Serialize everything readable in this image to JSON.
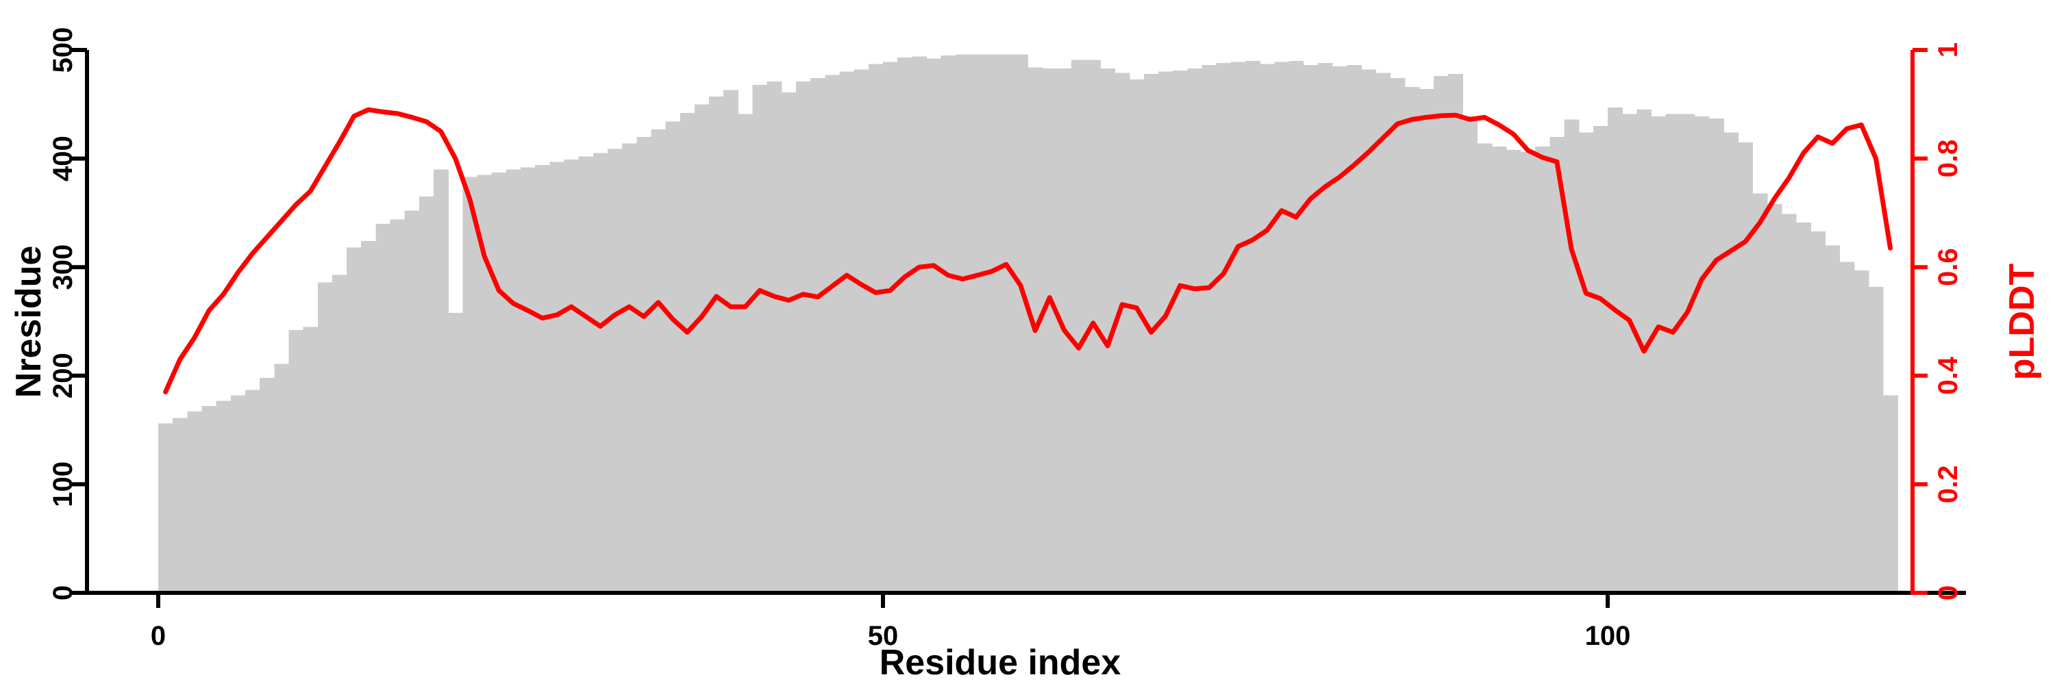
{
  "chart_data": {
    "type": "bar",
    "combo": "bar+line overlay, dual y-axis",
    "title": "",
    "xlabel": "Residue index",
    "ylabel_left": "Nresidue",
    "ylabel_right": "pLDDT",
    "xlim": [
      0,
      121
    ],
    "ylim_left": [
      0,
      500
    ],
    "ylim_right": [
      0,
      1
    ],
    "grid": false,
    "legend_position": "none",
    "x_ticks": {
      "values": [
        0,
        50,
        100
      ],
      "labels": [
        "0",
        "50",
        "100"
      ]
    },
    "y_ticks_left": {
      "values": [
        0,
        100,
        200,
        300,
        400,
        500
      ],
      "labels": [
        "0",
        "100",
        "200",
        "300",
        "400",
        "500"
      ]
    },
    "y_ticks_right": {
      "values": [
        0,
        0.2,
        0.4,
        0.6,
        0.8,
        1
      ],
      "labels": [
        "0",
        "0.2",
        "0.4",
        "0.6",
        "0.8",
        "1"
      ]
    },
    "x": [
      0,
      1,
      2,
      3,
      4,
      5,
      6,
      7,
      8,
      9,
      10,
      11,
      12,
      13,
      14,
      15,
      16,
      17,
      18,
      19,
      20,
      21,
      22,
      23,
      24,
      25,
      26,
      27,
      28,
      29,
      30,
      31,
      32,
      33,
      34,
      35,
      36,
      37,
      38,
      39,
      40,
      41,
      42,
      43,
      44,
      45,
      46,
      47,
      48,
      49,
      50,
      51,
      52,
      53,
      54,
      55,
      56,
      57,
      58,
      59,
      60,
      61,
      62,
      63,
      64,
      65,
      66,
      67,
      68,
      69,
      70,
      71,
      72,
      73,
      74,
      75,
      76,
      77,
      78,
      79,
      80,
      81,
      82,
      83,
      84,
      85,
      86,
      87,
      88,
      89,
      90,
      91,
      92,
      93,
      94,
      95,
      96,
      97,
      98,
      99,
      100,
      101,
      102,
      103,
      104,
      105,
      106,
      107,
      108,
      109,
      110,
      111,
      112,
      113,
      114,
      115,
      116,
      117,
      118,
      119
    ],
    "series": [
      {
        "name": "Nresidue",
        "type": "bar",
        "yaxis": "left",
        "color": "#cccccc",
        "values": [
          156,
          161,
          167,
          172,
          177,
          182,
          187,
          198,
          211,
          242,
          245,
          286,
          293,
          318,
          324,
          340,
          344,
          352,
          365,
          390,
          258,
          383,
          385,
          387,
          390,
          392,
          394,
          397,
          399,
          402,
          405,
          409,
          414,
          420,
          427,
          434,
          442,
          450,
          457,
          463,
          441,
          468,
          471,
          461,
          471,
          474,
          477,
          480,
          482,
          487,
          489,
          493,
          494,
          492,
          495,
          496,
          496,
          496,
          496,
          496,
          484,
          483,
          483,
          491,
          491,
          483,
          479,
          473,
          478,
          480,
          481,
          483,
          486,
          488,
          489,
          490,
          487,
          489,
          490,
          486,
          488,
          485,
          486,
          482,
          479,
          474,
          466,
          464,
          476,
          478,
          439,
          414,
          411,
          408,
          406,
          411,
          420,
          436,
          424,
          430,
          447,
          441,
          445,
          439,
          441,
          441,
          439,
          437,
          424,
          415,
          368,
          358,
          349,
          341,
          333,
          320,
          305,
          297,
          282,
          182
        ]
      },
      {
        "name": "pLDDT",
        "type": "line",
        "yaxis": "right",
        "color": "#ff0000",
        "values": [
          0.37,
          0.43,
          0.47,
          0.52,
          0.55,
          0.59,
          0.625,
          0.655,
          0.685,
          0.715,
          0.74,
          0.785,
          0.83,
          0.878,
          0.89,
          0.886,
          0.883,
          0.876,
          0.868,
          0.85,
          0.8,
          0.725,
          0.62,
          0.557,
          0.533,
          0.52,
          0.506,
          0.512,
          0.527,
          0.509,
          0.491,
          0.512,
          0.527,
          0.509,
          0.535,
          0.504,
          0.48,
          0.509,
          0.546,
          0.527,
          0.527,
          0.557,
          0.546,
          0.539,
          0.55,
          0.545,
          0.565,
          0.585,
          0.568,
          0.553,
          0.557,
          0.582,
          0.6,
          0.603,
          0.585,
          0.578,
          0.585,
          0.592,
          0.605,
          0.566,
          0.483,
          0.544,
          0.484,
          0.451,
          0.497,
          0.455,
          0.531,
          0.525,
          0.48,
          0.51,
          0.566,
          0.56,
          0.562,
          0.588,
          0.638,
          0.65,
          0.668,
          0.704,
          0.692,
          0.726,
          0.748,
          0.766,
          0.788,
          0.812,
          0.838,
          0.864,
          0.872,
          0.876,
          0.879,
          0.88,
          0.872,
          0.876,
          0.862,
          0.845,
          0.815,
          0.802,
          0.794,
          0.633,
          0.552,
          0.542,
          0.521,
          0.502,
          0.445,
          0.49,
          0.48,
          0.517,
          0.578,
          0.613,
          0.63,
          0.647,
          0.682,
          0.726,
          0.764,
          0.81,
          0.84,
          0.828,
          0.855,
          0.862,
          0.8,
          0.635
        ]
      }
    ]
  },
  "colors": {
    "background": "#ffffff",
    "bar_fill": "#cccccc",
    "line_stroke": "#ff0000",
    "left_axis": "#000000",
    "right_axis": "#ff0000"
  }
}
